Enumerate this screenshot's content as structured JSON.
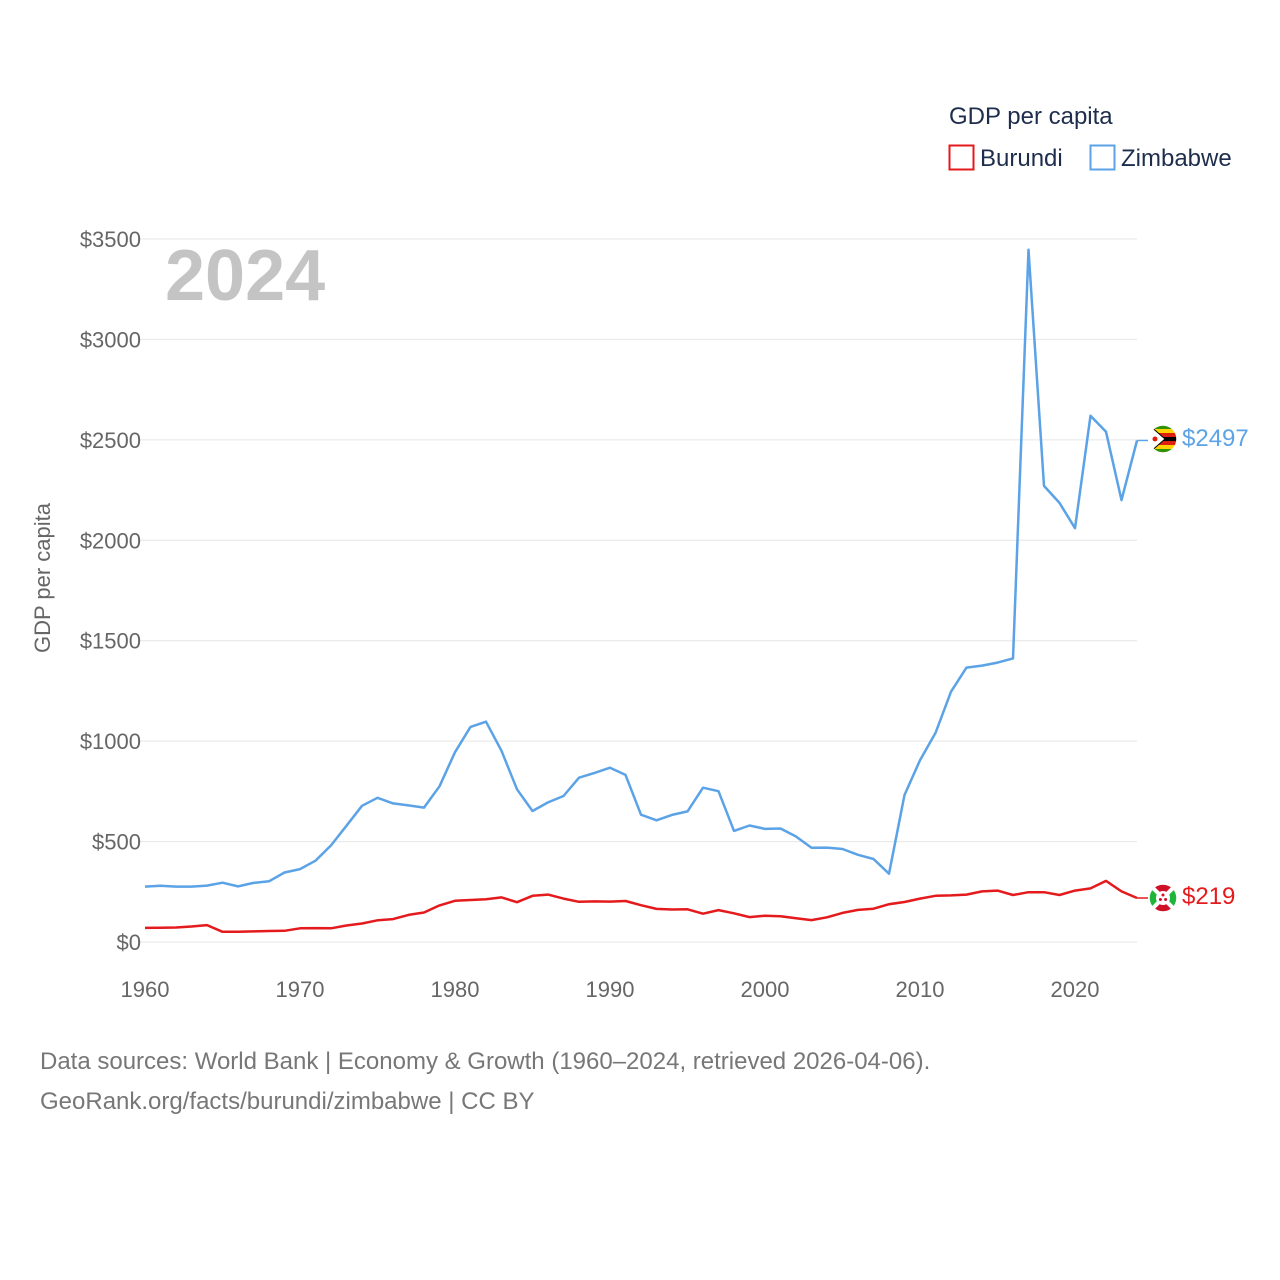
{
  "colors": {
    "burundi": "#e41a1c",
    "zimbabwe": "#5ba3e6",
    "grid": "#e6e6e6",
    "tick": "#666666",
    "watermark": "#c4c4c4"
  },
  "legend": {
    "title": "GDP per capita",
    "items": [
      "Burundi",
      "Zimbabwe"
    ]
  },
  "year_watermark": "2024",
  "end_labels": {
    "zimbabwe": "$2497",
    "burundi": "$219"
  },
  "footer": {
    "line1": "Data sources: World Bank | Economy & Growth (1960–2024, retrieved 2026-04-06).",
    "line2": "GeoRank.org/facts/burundi/zimbabwe | CC BY"
  },
  "chart_data": {
    "type": "line",
    "title": "",
    "xlabel": "",
    "ylabel": "GDP per capita",
    "xlim": [
      1960,
      2024
    ],
    "ylim": [
      0,
      3500
    ],
    "x_ticks": [
      1960,
      1970,
      1980,
      1990,
      2000,
      2010,
      2020
    ],
    "x_tick_labels": [
      "1960",
      "1970",
      "1980",
      "1990",
      "2000",
      "2010",
      "2020"
    ],
    "y_ticks": [
      0,
      500,
      1000,
      1500,
      2000,
      2500,
      3000,
      3500
    ],
    "y_tick_labels": [
      "$0",
      "$500",
      "$1000",
      "$1500",
      "$2000",
      "$2500",
      "$3000",
      "$3500"
    ],
    "grid": true,
    "legend_position": "top-right",
    "x": [
      1960,
      1961,
      1962,
      1963,
      1964,
      1965,
      1966,
      1967,
      1968,
      1969,
      1970,
      1971,
      1972,
      1973,
      1974,
      1975,
      1976,
      1977,
      1978,
      1979,
      1980,
      1981,
      1982,
      1983,
      1984,
      1985,
      1986,
      1987,
      1988,
      1989,
      1990,
      1991,
      1992,
      1993,
      1994,
      1995,
      1996,
      1997,
      1998,
      1999,
      2000,
      2001,
      2002,
      2003,
      2004,
      2005,
      2006,
      2007,
      2008,
      2009,
      2010,
      2011,
      2012,
      2013,
      2014,
      2015,
      2016,
      2017,
      2018,
      2019,
      2020,
      2021,
      2022,
      2023,
      2024
    ],
    "series": [
      {
        "name": "Burundi",
        "values": [
          70,
          71,
          72,
          77,
          84,
          51,
          51,
          53,
          55,
          56,
          68,
          69,
          68,
          82,
          92,
          108,
          114,
          135,
          147,
          182,
          205,
          209,
          213,
          222,
          198,
          230,
          236,
          216,
          200,
          202,
          201,
          204,
          183,
          165,
          162,
          163,
          141,
          159,
          143,
          124,
          131,
          128,
          118,
          109,
          123,
          145,
          160,
          166,
          188,
          199,
          216,
          230,
          232,
          236,
          252,
          256,
          234,
          248,
          248,
          234,
          256,
          267,
          304,
          252,
          219
        ]
      },
      {
        "name": "Zimbabwe",
        "values": [
          276,
          280,
          276,
          276,
          281,
          295,
          277,
          294,
          302,
          346,
          363,
          405,
          481,
          579,
          678,
          718,
          690,
          680,
          669,
          775,
          945,
          1071,
          1097,
          952,
          760,
          652,
          695,
          727,
          818,
          842,
          868,
          832,
          634,
          606,
          633,
          650,
          768,
          751,
          553,
          580,
          563,
          565,
          525,
          469,
          470,
          463,
          434,
          413,
          340,
          732,
          905,
          1041,
          1246,
          1366,
          1376,
          1391,
          1412,
          3446,
          2271,
          2186,
          2060,
          2620,
          2540,
          2200,
          2497
        ]
      }
    ]
  }
}
